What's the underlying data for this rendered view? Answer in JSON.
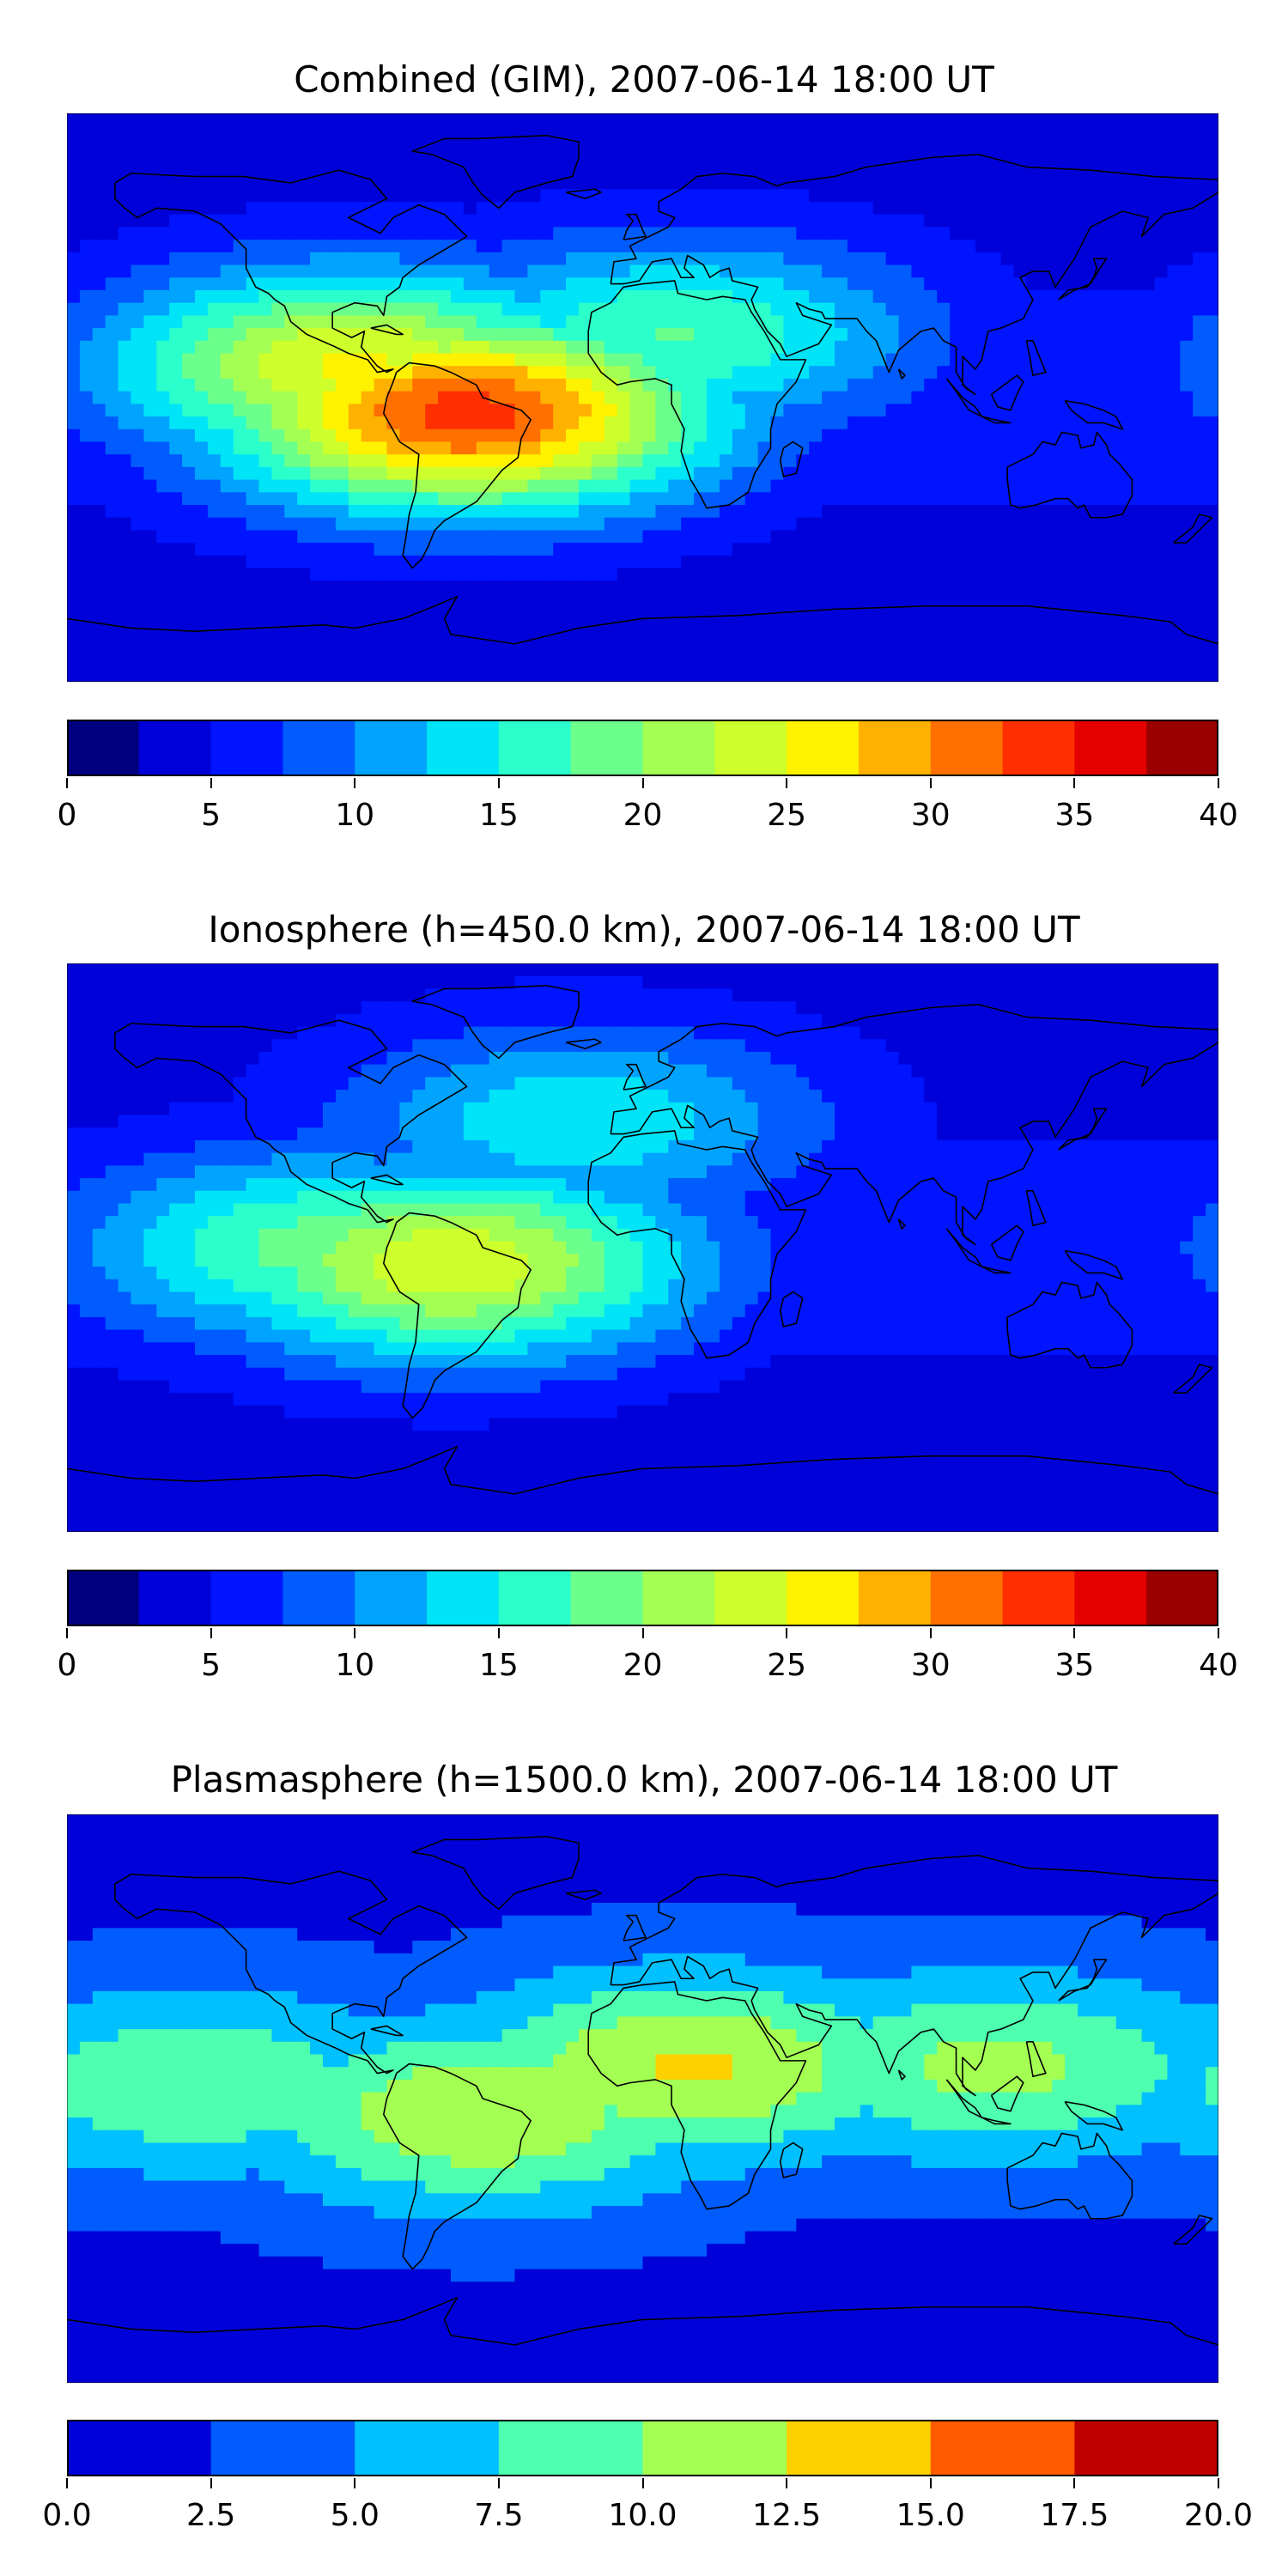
{
  "panels": [
    {
      "title": "Combined (GIM), 2007-06-14 18:00 UT",
      "colorbar": {
        "min": 0,
        "max": 40,
        "step": 2.5,
        "tick_labels": [
          "0",
          "5",
          "10",
          "15",
          "20",
          "25",
          "30",
          "35",
          "40"
        ],
        "colors": [
          "#00007f",
          "#0000d9",
          "#0014ff",
          "#005cff",
          "#00a4ff",
          "#00e4f8",
          "#2bffcb",
          "#6bff8b",
          "#a4ff53",
          "#ccff2b",
          "#fff200",
          "#ffb100",
          "#ff7000",
          "#ff2f00",
          "#e60000",
          "#9a0000"
        ]
      },
      "field": {
        "peaks": [
          {
            "lon": -55,
            "lat": -5,
            "value": 30
          },
          {
            "lon": -90,
            "lat": 10,
            "value": 22
          },
          {
            "lon": 10,
            "lat": 20,
            "value": 14
          }
        ]
      }
    },
    {
      "title": "Ionosphere  (h=450.0 km), 2007-06-14 18:00 UT",
      "colorbar": {
        "min": 0,
        "max": 40,
        "step": 2.5,
        "tick_labels": [
          "0",
          "5",
          "10",
          "15",
          "20",
          "25",
          "30",
          "35",
          "40"
        ],
        "colors": [
          "#00007f",
          "#0000d9",
          "#0014ff",
          "#005cff",
          "#00a4ff",
          "#00e4f8",
          "#2bffcb",
          "#6bff8b",
          "#a4ff53",
          "#ccff2b",
          "#fff200",
          "#ffb100",
          "#ff7000",
          "#ff2f00",
          "#e60000",
          "#9a0000"
        ]
      },
      "field": {
        "peaks": [
          {
            "lon": -60,
            "lat": -5,
            "value": 21
          },
          {
            "lon": -100,
            "lat": 0,
            "value": 15
          },
          {
            "lon": -20,
            "lat": 40,
            "value": 11
          }
        ]
      }
    },
    {
      "title": "Plasmasphere (h=1500.0 km), 2007-06-14 18:00 UT",
      "colorbar": {
        "min": 0,
        "max": 20,
        "step": 2.5,
        "tick_labels": [
          "0.0",
          "2.5",
          "5.0",
          "7.5",
          "10.0",
          "12.5",
          "15.0",
          "17.5",
          "20.0"
        ],
        "colors": [
          "#0000d9",
          "#005cff",
          "#00c0ff",
          "#4dffaf",
          "#a4ff53",
          "#ffd000",
          "#ff5a00",
          "#c00000"
        ]
      },
      "field": {
        "peaks": [
          {
            "lon": 15,
            "lat": 10,
            "value": 11
          },
          {
            "lon": -50,
            "lat": -5,
            "value": 10.5
          },
          {
            "lon": 110,
            "lat": 10,
            "value": 9
          },
          {
            "lon": -140,
            "lat": 5,
            "value": 8
          }
        ]
      }
    }
  ]
}
